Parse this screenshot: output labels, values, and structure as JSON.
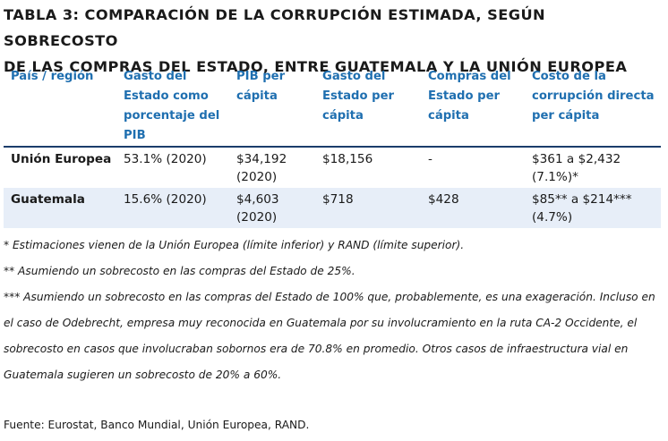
{
  "title": {
    "line1": "TABLA 3: COMPARACIÓN DE LA CORRUPCIÓN ESTIMADA, SEGÚN SOBRECOSTO",
    "line2": "DE LAS COMPRAS DEL ESTADO, ENTRE GUATEMALA Y LA UNIÓN EUROPEA"
  },
  "table": {
    "headers": [
      "País / región",
      "Gasto del Estado como porcentaje del PIB",
      "PIB per cápita",
      "Gasto del Estado per cápita",
      "Compras del Estado per cápita",
      "Costo de la corrupción directa per cápita"
    ],
    "rows": [
      [
        "Unión Europea",
        "53.1% (2020)",
        "$34,192 (2020)",
        "$18,156",
        "-",
        "$361 a $2,432 (7.1%)*"
      ],
      [
        "Guatemala",
        "15.6% (2020)",
        "$4,603 (2020)",
        "$718",
        "$428",
        "$85** a $214*** (4.7%)"
      ]
    ]
  },
  "notes": [
    "* Estimaciones vienen de la Unión Europea (límite inferior) y RAND (límite superior).",
    "** Asumiendo un sobrecosto en las compras del Estado de 25%.",
    "*** Asumiendo un sobrecosto en las compras del Estado de 100% que, probablemente, es una exageración. Incluso en el caso de Odebrecht, empresa muy reconocida en Guatemala por su involucramiento en la ruta CA-2 Occidente, el sobrecosto en casos que involucraban sobornos era de 70.8% en promedio. Otros casos de infraestructura vial en Guatemala sugieren un sobrecosto de 20% a 60%."
  ],
  "source": "Fuente: Eurostat, Banco Mundial, Unión Europea, RAND.",
  "colors": {
    "header_text": "#1f6fb0",
    "header_rule": "#1b3d6b",
    "shaded_row": "#e7eef8"
  }
}
